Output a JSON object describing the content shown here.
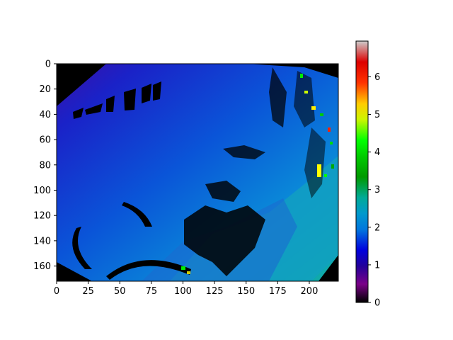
{
  "chart_data": {
    "type": "heatmap",
    "title": "",
    "xlabel": "",
    "ylabel": "",
    "x_ticks": [
      0,
      25,
      50,
      75,
      100,
      125,
      150,
      175,
      200
    ],
    "y_ticks": [
      0,
      20,
      40,
      60,
      80,
      100,
      120,
      140,
      160
    ],
    "xlim": [
      0,
      223
    ],
    "ylim": [
      172,
      0
    ],
    "image_shape": [
      172,
      223
    ],
    "colorbar": {
      "colormap": "nipy_spectral",
      "range": [
        0,
        6.95
      ],
      "ticks": [
        0,
        1,
        2,
        3,
        4,
        5,
        6
      ]
    },
    "field": {
      "background": "low values (~1.1) at top-left rising to ~2.5 at bottom-right",
      "invalid_color": "#000000",
      "bright_speckle_range": [
        4,
        6.5
      ]
    }
  }
}
